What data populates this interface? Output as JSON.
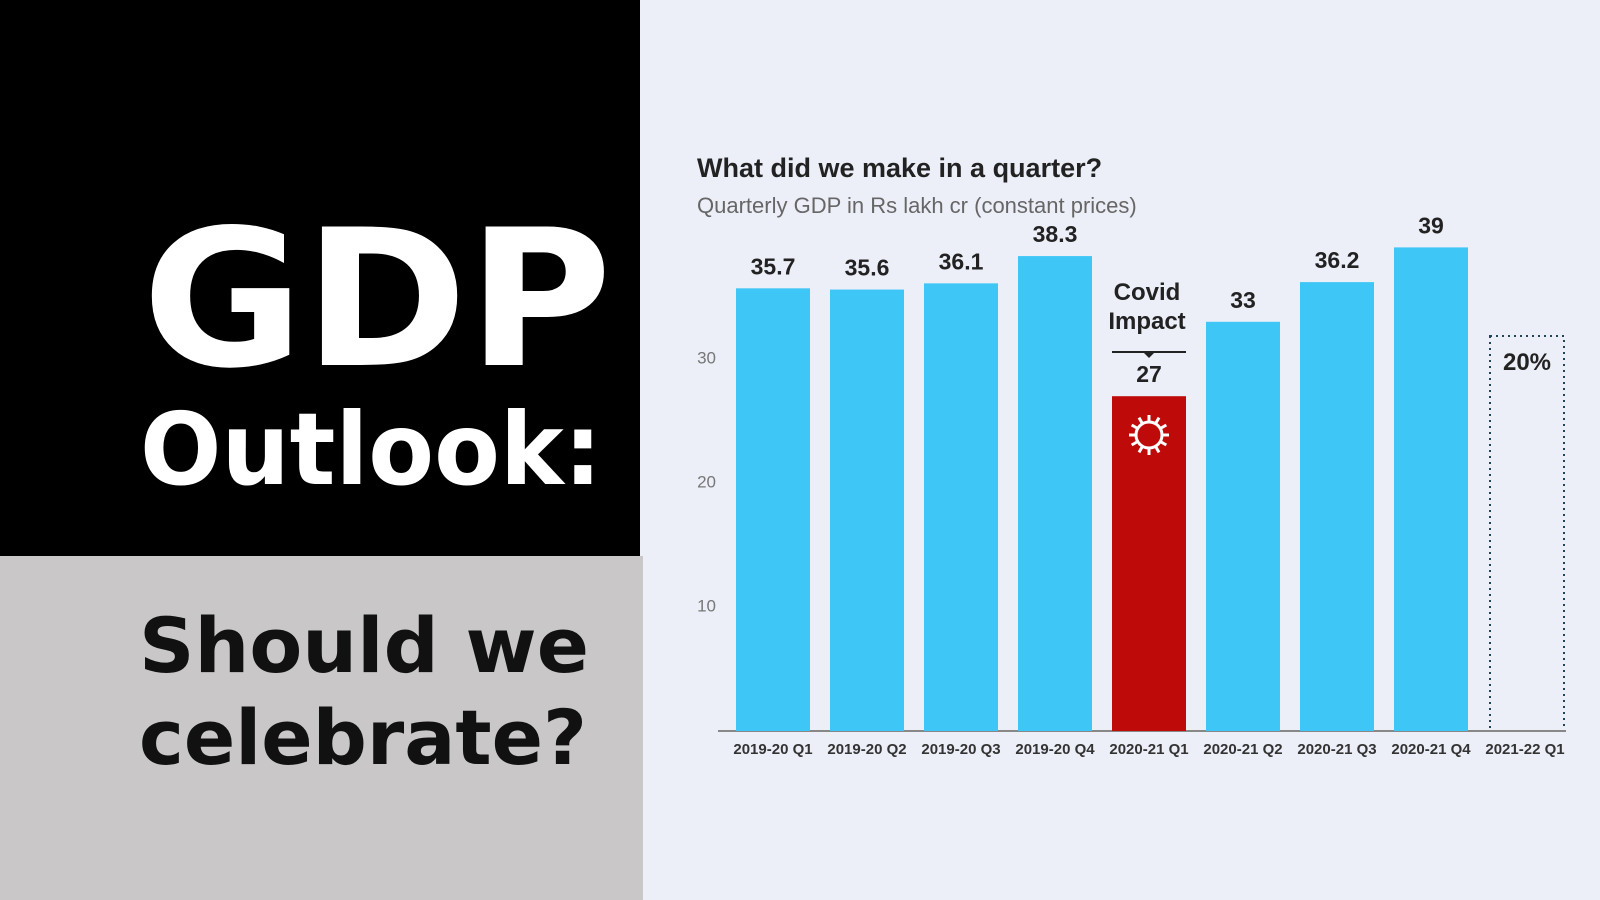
{
  "panel": {
    "lines": [
      "GDP",
      "Outlook:",
      "Should we",
      "celebrate?"
    ]
  },
  "chart_data": {
    "type": "bar",
    "title": "What did we make in a quarter?",
    "subtitle": "Quarterly GDP in Rs lakh cr (constant prices)",
    "categories": [
      "2019-20 Q1",
      "2019-20 Q2",
      "2019-20 Q3",
      "2019-20 Q4",
      "2020-21 Q1",
      "2020-21 Q2",
      "2020-21 Q3",
      "2020-21 Q4",
      "2021-22 Q1"
    ],
    "values": [
      35.7,
      35.6,
      36.1,
      38.3,
      27,
      33,
      36.2,
      39,
      null
    ],
    "colors": [
      "#3ec6f6",
      "#3ec6f6",
      "#3ec6f6",
      "#3ec6f6",
      "#bf0a0a",
      "#3ec6f6",
      "#3ec6f6",
      "#3ec6f6",
      "#3ec6f6"
    ],
    "ylim": [
      0,
      40
    ],
    "yticks": [
      10,
      20,
      30
    ],
    "grid": false,
    "annotations": {
      "covid": [
        "Covid",
        "Impact"
      ],
      "projection": "20%"
    }
  }
}
